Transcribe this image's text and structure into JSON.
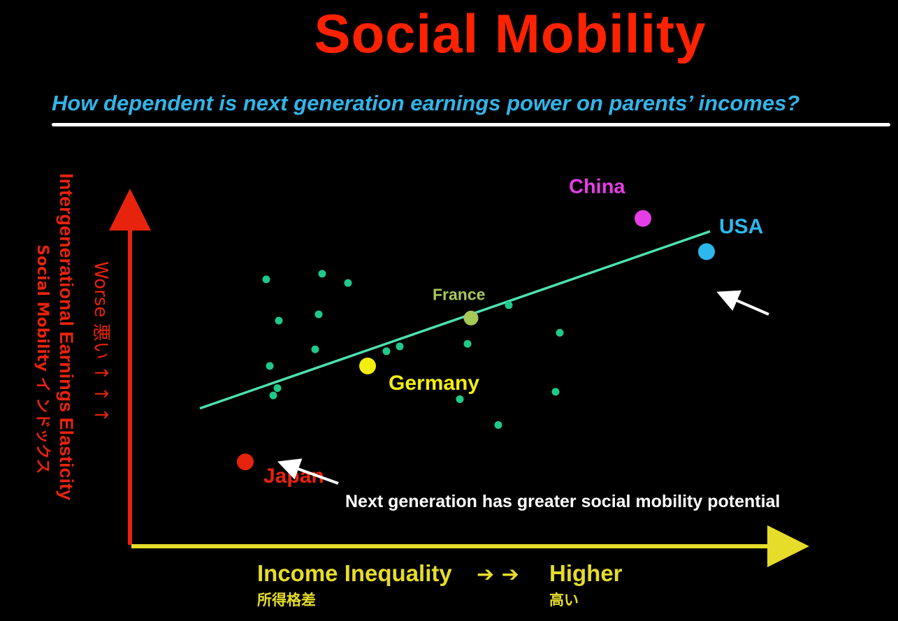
{
  "title": "Social Mobility",
  "subtitle": "How dependent is next generation earnings power on parents’ incomes?",
  "colors": {
    "title": "#ff2200",
    "subtitle": "#33b4e8",
    "y_axis": "#e8230d",
    "x_axis": "#e6dc2a",
    "trend": "#4de0b0",
    "points": "#1fc98a",
    "arrow": "#ffffff"
  },
  "y_axis": {
    "label_line1": "Intergenerational Earnings Elasticity",
    "label_line2": "Social Mobility イ ンドックス",
    "direction_label": "Worse 悪い ↑ ↑ ↑"
  },
  "x_axis": {
    "label": "Income Inequality",
    "label_jp": "所得格差",
    "arrows": "➔ ➔",
    "direction_label": "Higher",
    "direction_label_jp": "高い"
  },
  "annotation": "Next generation has greater social mobility potential",
  "chart_data": {
    "type": "scatter",
    "xlabel": "Income Inequality",
    "ylabel": "Intergenerational Earnings Elasticity",
    "xlim": [
      0,
      100
    ],
    "ylim": [
      0,
      100
    ],
    "grid": false,
    "trend_line": {
      "x": [
        10,
        83
      ],
      "y": [
        37,
        85
      ]
    },
    "highlighted": [
      {
        "name": "Japan",
        "x": 16.5,
        "y": 22.5,
        "color": "#e8230d",
        "size": "large"
      },
      {
        "name": "Germany",
        "x": 34,
        "y": 48.5,
        "color": "#f2ee10",
        "size": "large"
      },
      {
        "name": "France",
        "x": 48.8,
        "y": 61.5,
        "color": "#a6c857",
        "size": "large"
      },
      {
        "name": "China",
        "x": 73.4,
        "y": 88.5,
        "color": "#e63ee6",
        "size": "large"
      },
      {
        "name": "USA",
        "x": 82.5,
        "y": 79.5,
        "color": "#2cb8ec",
        "size": "large"
      }
    ],
    "points": [
      {
        "x": 19.5,
        "y": 72
      },
      {
        "x": 27.5,
        "y": 73.5
      },
      {
        "x": 31.2,
        "y": 71
      },
      {
        "x": 21.3,
        "y": 60.8
      },
      {
        "x": 27,
        "y": 62.5
      },
      {
        "x": 26.5,
        "y": 53
      },
      {
        "x": 20,
        "y": 48.5
      },
      {
        "x": 21.1,
        "y": 42.5
      },
      {
        "x": 20.5,
        "y": 40.5
      },
      {
        "x": 38.6,
        "y": 53.8
      },
      {
        "x": 36.7,
        "y": 52.5
      },
      {
        "x": 48.3,
        "y": 54.5
      },
      {
        "x": 54.2,
        "y": 65
      },
      {
        "x": 61.5,
        "y": 57.5
      },
      {
        "x": 47.2,
        "y": 39.5
      },
      {
        "x": 60.9,
        "y": 41.5
      },
      {
        "x": 52.7,
        "y": 32.5
      }
    ]
  }
}
